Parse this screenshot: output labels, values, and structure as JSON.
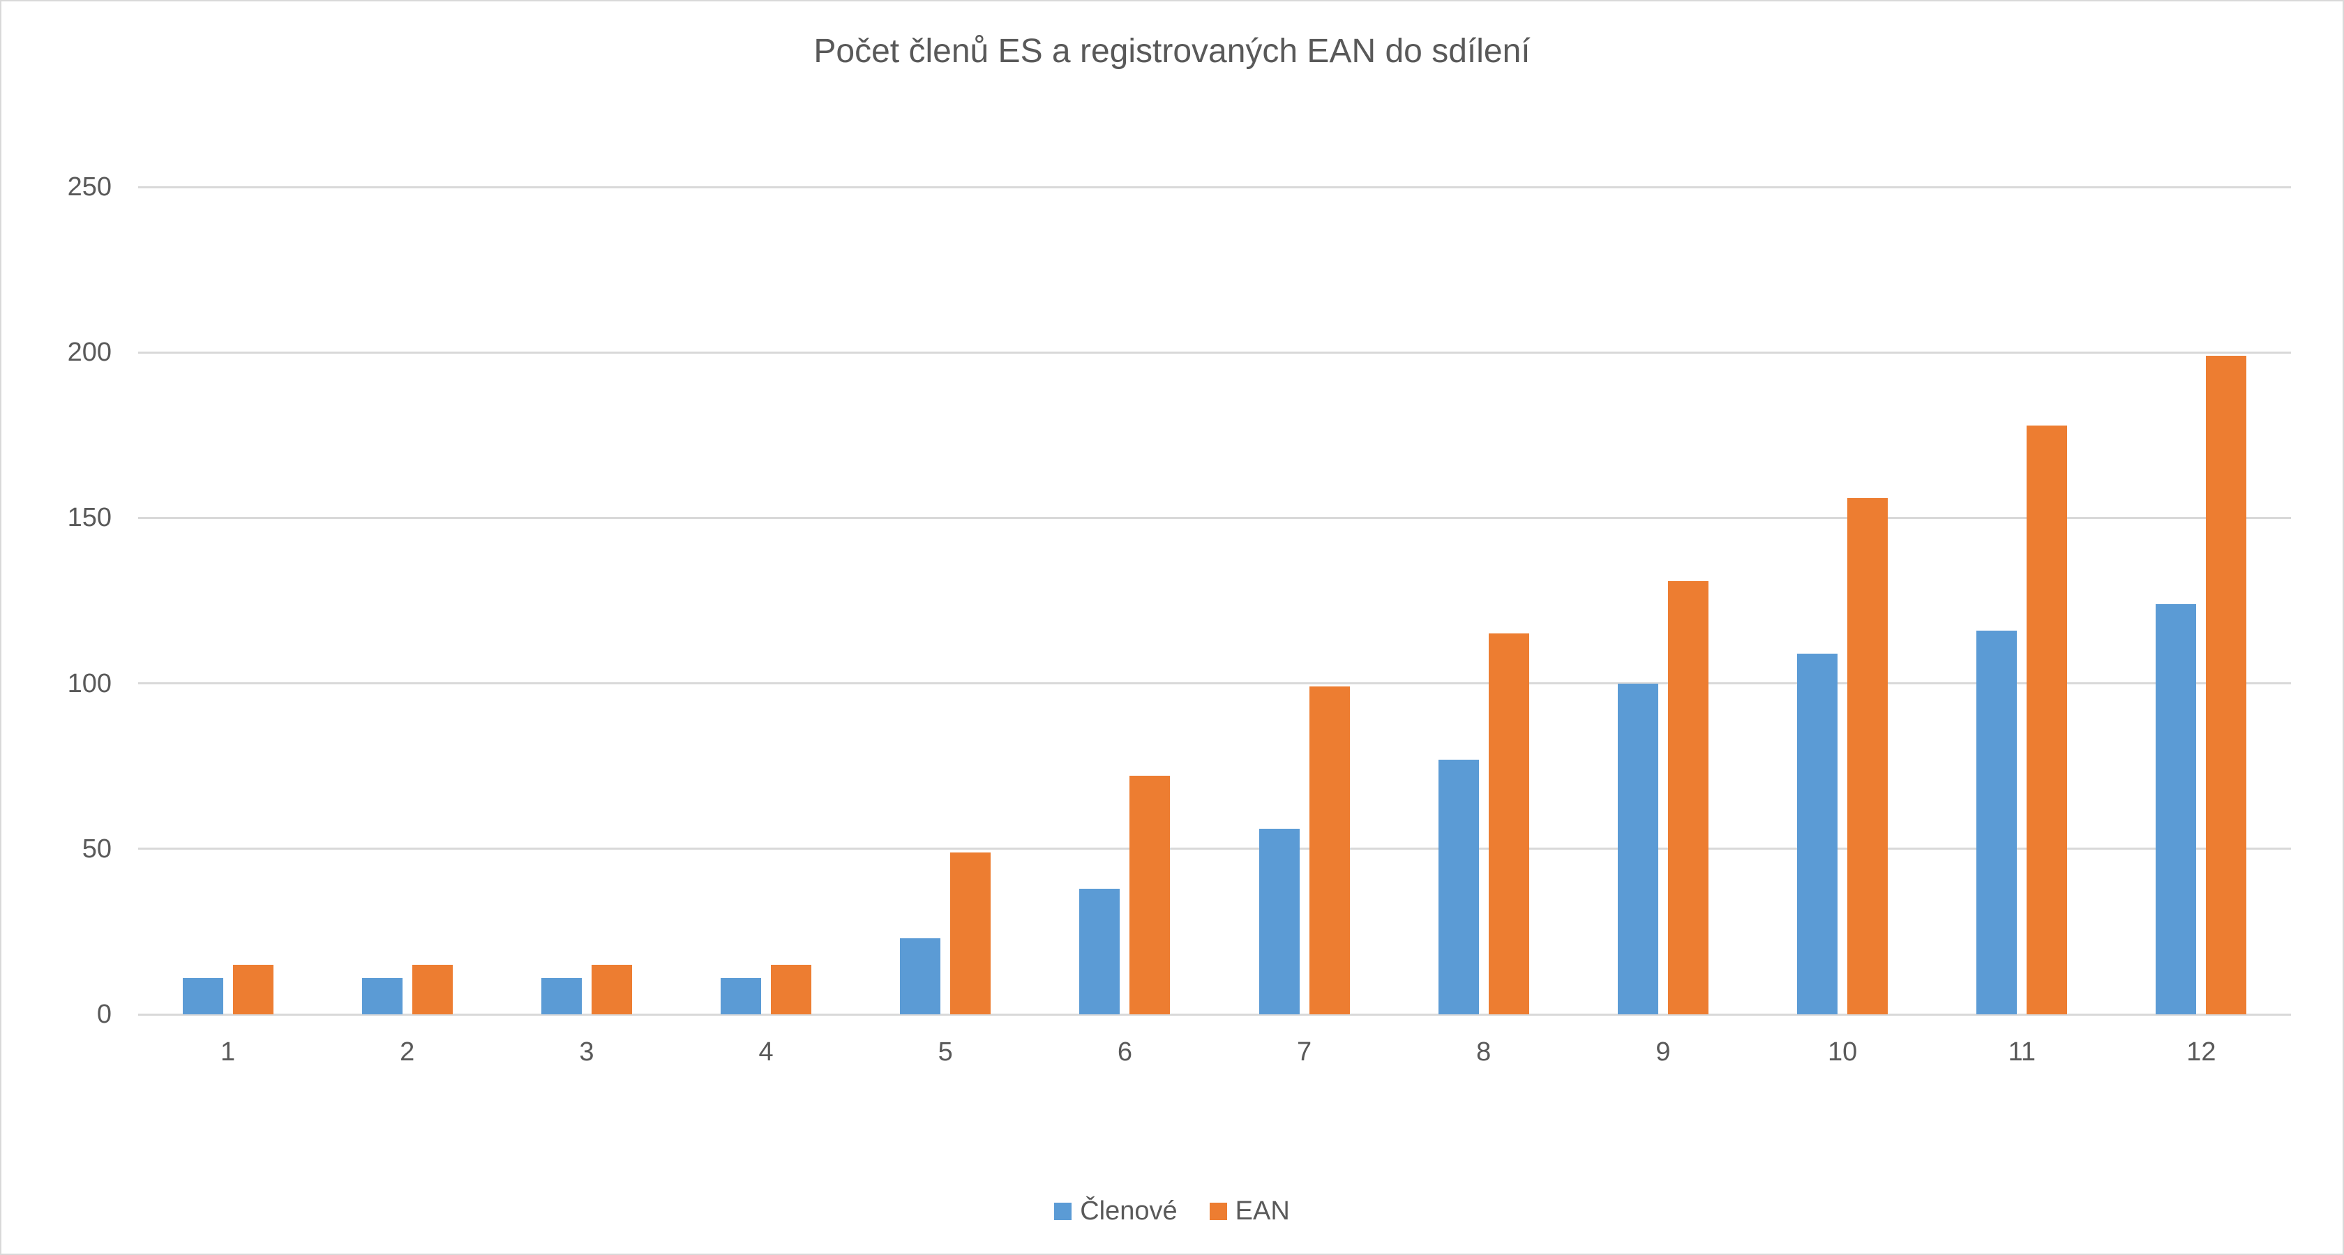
{
  "chart_data": {
    "type": "bar",
    "title": "Počet členů ES a registrovaných EAN do sdílení",
    "xlabel": "",
    "ylabel": "",
    "categories": [
      "1",
      "2",
      "3",
      "4",
      "5",
      "6",
      "7",
      "8",
      "9",
      "10",
      "11",
      "12"
    ],
    "series": [
      {
        "name": "Členové",
        "slug": "clenove",
        "color": "#5B9BD5",
        "values": [
          11,
          11,
          11,
          11,
          23,
          38,
          56,
          77,
          100,
          109,
          116,
          124
        ]
      },
      {
        "name": "EAN",
        "slug": "ean",
        "color": "#ED7D31",
        "values": [
          15,
          15,
          15,
          15,
          49,
          72,
          99,
          115,
          131,
          156,
          178,
          199
        ]
      }
    ],
    "ylim": [
      0,
      250
    ],
    "yticks": [
      0,
      50,
      100,
      150,
      200,
      250
    ],
    "grid": true,
    "legend_position": "bottom"
  },
  "styles": {
    "plot_background": "#FFFFFF",
    "frame_border_color": "#D9D9D9",
    "gridline_color": "#D9D9D9",
    "axis_line_color": "#D9D9D9",
    "text_color": "#595959"
  }
}
